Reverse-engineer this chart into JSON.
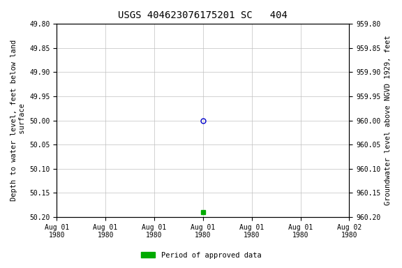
{
  "title": "USGS 404623076175201 SC   404",
  "ylabel_left": "Depth to water level, feet below land\n surface",
  "ylabel_right": "Groundwater level above NGVD 1929, feet",
  "ylim_left": [
    49.8,
    50.2
  ],
  "ylim_right": [
    959.8,
    960.2
  ],
  "yticks_left": [
    49.8,
    49.85,
    49.9,
    49.95,
    50.0,
    50.05,
    50.1,
    50.15,
    50.2
  ],
  "yticks_right": [
    959.8,
    959.85,
    959.9,
    959.95,
    960.0,
    960.05,
    960.1,
    960.15,
    960.2
  ],
  "ytick_labels_left": [
    "49.80",
    "49.85",
    "49.90",
    "49.95",
    "50.00",
    "50.05",
    "50.10",
    "50.15",
    "50.20"
  ],
  "ytick_labels_right": [
    "959.80",
    "959.85",
    "959.90",
    "959.95",
    "960.00",
    "960.05",
    "960.10",
    "960.15",
    "960.20"
  ],
  "open_circle_value": 50.0,
  "green_square_value": 50.19,
  "open_circle_color": "#0000cc",
  "green_square_color": "#00aa00",
  "background_color": "#ffffff",
  "grid_color": "#c0c0c0",
  "legend_label": "Period of approved data",
  "legend_color": "#00aa00",
  "title_fontsize": 10,
  "tick_fontsize": 7,
  "label_fontsize": 7.5,
  "font_family": "monospace"
}
